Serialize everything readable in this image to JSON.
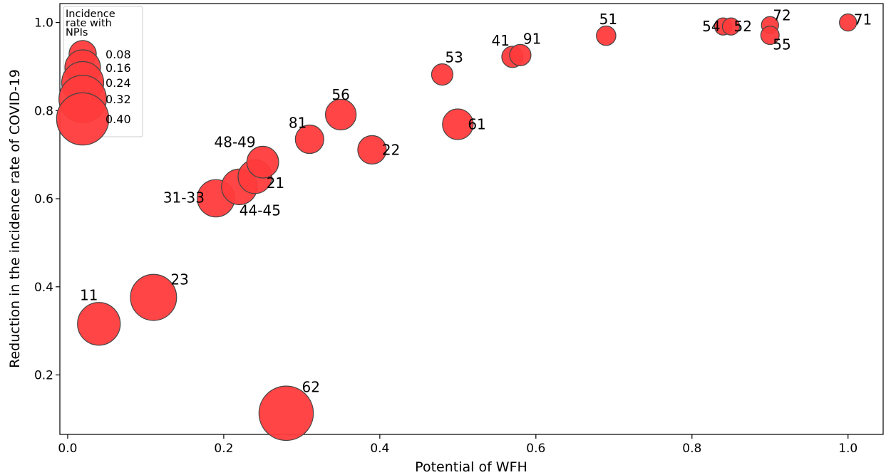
{
  "chart_data": {
    "type": "scatter",
    "xlabel": "Potential of WFH",
    "ylabel": "Reduction in the incidence rate of COVID-19",
    "xlim": [
      -0.01,
      1.045
    ],
    "ylim": [
      0.065,
      1.043
    ],
    "xticks": [
      "0.0",
      "0.2",
      "0.4",
      "0.6",
      "0.8",
      "1.0"
    ],
    "yticks": [
      "0.2",
      "0.4",
      "0.6",
      "0.8",
      "1.0"
    ],
    "grid": false,
    "marker_color": "#ff3b3b",
    "marker_edge": "#444444",
    "points": [
      {
        "label": "11",
        "x": 0.04,
        "y": 0.316,
        "size": 0.25
      },
      {
        "label": "23",
        "x": 0.11,
        "y": 0.376,
        "size": 0.3
      },
      {
        "label": "62",
        "x": 0.28,
        "y": 0.113,
        "size": 0.44
      },
      {
        "label": "31-33",
        "x": 0.19,
        "y": 0.601,
        "size": 0.18
      },
      {
        "label": "44-45",
        "x": 0.22,
        "y": 0.627,
        "size": 0.16
      },
      {
        "label": "21",
        "x": 0.24,
        "y": 0.65,
        "size": 0.14
      },
      {
        "label": "48-49",
        "x": 0.25,
        "y": 0.683,
        "size": 0.12
      },
      {
        "label": "81",
        "x": 0.31,
        "y": 0.735,
        "size": 0.09
      },
      {
        "label": "56",
        "x": 0.35,
        "y": 0.791,
        "size": 0.11
      },
      {
        "label": "22",
        "x": 0.39,
        "y": 0.711,
        "size": 0.09
      },
      {
        "label": "61",
        "x": 0.5,
        "y": 0.769,
        "size": 0.11
      },
      {
        "label": "53",
        "x": 0.48,
        "y": 0.882,
        "size": 0.04
      },
      {
        "label": "41",
        "x": 0.57,
        "y": 0.922,
        "size": 0.04
      },
      {
        "label": "91",
        "x": 0.58,
        "y": 0.926,
        "size": 0.04
      },
      {
        "label": "51",
        "x": 0.69,
        "y": 0.97,
        "size": 0.03
      },
      {
        "label": "54",
        "x": 0.84,
        "y": 0.991,
        "size": 0.02
      },
      {
        "label": "52",
        "x": 0.85,
        "y": 0.991,
        "size": 0.02
      },
      {
        "label": "72",
        "x": 0.9,
        "y": 0.994,
        "size": 0.02
      },
      {
        "label": "55",
        "x": 0.9,
        "y": 0.971,
        "size": 0.025
      },
      {
        "label": "71",
        "x": 1.0,
        "y": 1.0,
        "size": 0.02
      }
    ],
    "legend": {
      "title": "Incidence\nrate with\nNPIs",
      "placement": "top-left",
      "entries": [
        {
          "label": "0.08",
          "size": 0.08
        },
        {
          "label": "0.16",
          "size": 0.16
        },
        {
          "label": "0.24",
          "size": 0.24
        },
        {
          "label": "0.32",
          "size": 0.32
        },
        {
          "label": "0.40",
          "size": 0.4
        }
      ]
    }
  }
}
